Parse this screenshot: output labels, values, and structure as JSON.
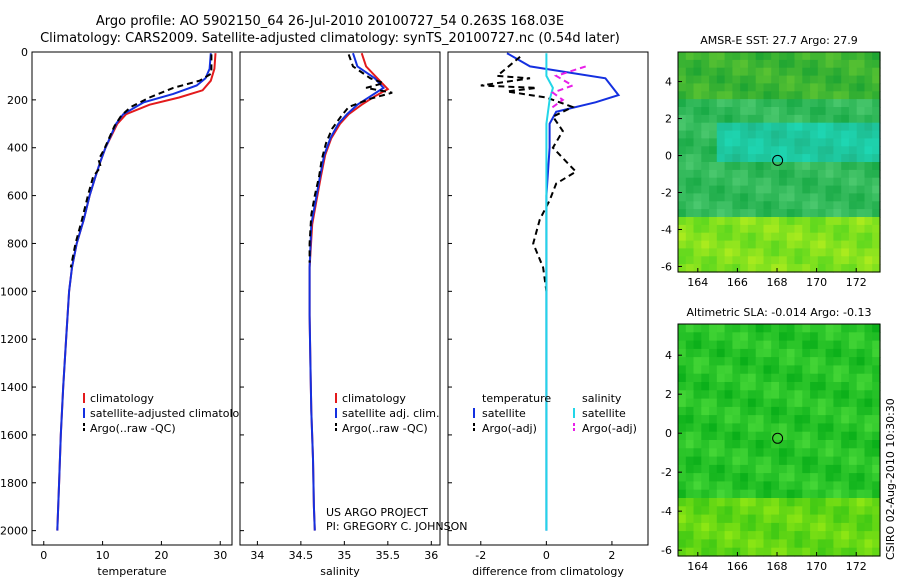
{
  "header": {
    "line1": "Argo profile: AO 5902150_64 26-Jul-2010 20100727_54 0.263S 168.03E",
    "line2": "Climatology: CARS2009. Satellite-adjusted climatology: synTS_20100727.nc (0.54d later)"
  },
  "credit": {
    "line1": "US ARGO PROJECT",
    "line2": "PI: GREGORY C. JOHNSON"
  },
  "stamp": "CSIRO 02-Aug-2010 10:30:30",
  "colors": {
    "clim": "#e31a1c",
    "sat": "#1430e0",
    "argo": "#000000",
    "sat_cyan": "#22d6e8",
    "argo_mag": "#e820e8"
  },
  "chart_data": [
    {
      "type": "line",
      "id": "temperature",
      "xlabel": "temperature",
      "xlim": [
        -2,
        32
      ],
      "ylim": [
        2060,
        0
      ],
      "xticks": [
        0,
        10,
        20,
        30
      ],
      "yticks": [
        0,
        200,
        400,
        600,
        800,
        1000,
        1200,
        1400,
        1600,
        1800,
        2000
      ],
      "legend": [
        "climatology",
        "satellite-adjusted climatology",
        "Argo(..raw -QC)"
      ],
      "series": [
        {
          "name": "climatology",
          "color": "clim",
          "dash": "solid",
          "points": [
            [
              29.2,
              5
            ],
            [
              29.0,
              70
            ],
            [
              28.4,
              120
            ],
            [
              27.0,
              160
            ],
            [
              23.0,
              190
            ],
            [
              18.0,
              220
            ],
            [
              14.0,
              260
            ],
            [
              12.5,
              300
            ],
            [
              11.5,
              350
            ],
            [
              10.5,
              400
            ],
            [
              9.6,
              460
            ],
            [
              8.8,
              520
            ],
            [
              7.8,
              600
            ],
            [
              6.8,
              700
            ],
            [
              5.6,
              800
            ],
            [
              4.8,
              900
            ],
            [
              4.3,
              1000
            ],
            [
              3.8,
              1200
            ],
            [
              3.3,
              1400
            ],
            [
              2.9,
              1600
            ],
            [
              2.6,
              1800
            ],
            [
              2.3,
              2000
            ]
          ]
        },
        {
          "name": "satellite-adjusted climatology",
          "color": "sat",
          "dash": "solid",
          "points": [
            [
              28.4,
              5
            ],
            [
              28.2,
              70
            ],
            [
              27.5,
              110
            ],
            [
              26.0,
              140
            ],
            [
              22.0,
              175
            ],
            [
              17.0,
              210
            ],
            [
              13.5,
              260
            ],
            [
              12.3,
              300
            ],
            [
              11.4,
              350
            ],
            [
              10.5,
              400
            ],
            [
              9.6,
              460
            ],
            [
              8.8,
              520
            ],
            [
              7.8,
              600
            ],
            [
              6.8,
              700
            ],
            [
              5.6,
              800
            ],
            [
              4.8,
              900
            ],
            [
              4.3,
              1000
            ],
            [
              3.8,
              1200
            ],
            [
              3.3,
              1400
            ],
            [
              2.9,
              1600
            ],
            [
              2.6,
              1800
            ],
            [
              2.3,
              2000
            ]
          ]
        },
        {
          "name": "Argo(..raw -QC)",
          "color": "argo",
          "dash": "dashed",
          "points": [
            [
              28.5,
              10
            ],
            [
              28.5,
              90
            ],
            [
              26.5,
              120
            ],
            [
              22.0,
              150
            ],
            [
              18.0,
              190
            ],
            [
              14.8,
              230
            ],
            [
              13.2,
              265
            ],
            [
              12.0,
              310
            ],
            [
              11.1,
              360
            ],
            [
              10.2,
              410
            ],
            [
              9.3,
              450
            ],
            [
              9.7,
              480
            ],
            [
              8.4,
              520
            ],
            [
              7.5,
              600
            ],
            [
              6.5,
              700
            ],
            [
              5.4,
              800
            ],
            [
              4.6,
              900
            ]
          ]
        }
      ]
    },
    {
      "type": "line",
      "id": "salinity",
      "xlabel": "salinity",
      "xlim": [
        33.8,
        36.1
      ],
      "ylim": [
        2060,
        0
      ],
      "xticks": [
        34,
        34.5,
        35,
        35.5,
        36
      ],
      "yticks": [
        0,
        200,
        400,
        600,
        800,
        1000,
        1200,
        1400,
        1600,
        1800,
        2000
      ],
      "legend": [
        "climatology",
        "satellite adj. clim.",
        "Argo(..raw -QC)"
      ],
      "series": [
        {
          "name": "climatology",
          "color": "clim",
          "dash": "solid",
          "points": [
            [
              35.2,
              5
            ],
            [
              35.25,
              60
            ],
            [
              35.38,
              110
            ],
            [
              35.5,
              155
            ],
            [
              35.35,
              185
            ],
            [
              35.2,
              220
            ],
            [
              35.05,
              260
            ],
            [
              34.95,
              300
            ],
            [
              34.85,
              360
            ],
            [
              34.78,
              430
            ],
            [
              34.73,
              520
            ],
            [
              34.68,
              620
            ],
            [
              34.63,
              720
            ],
            [
              34.6,
              900
            ],
            [
              34.6,
              1100
            ],
            [
              34.61,
              1300
            ],
            [
              34.62,
              1500
            ],
            [
              34.64,
              1700
            ],
            [
              34.65,
              1900
            ],
            [
              34.66,
              2000
            ]
          ]
        },
        {
          "name": "satellite adj. clim.",
          "color": "sat",
          "dash": "solid",
          "points": [
            [
              35.1,
              5
            ],
            [
              35.15,
              60
            ],
            [
              35.35,
              110
            ],
            [
              35.45,
              150
            ],
            [
              35.3,
              185
            ],
            [
              35.15,
              220
            ],
            [
              35.03,
              260
            ],
            [
              34.93,
              300
            ],
            [
              34.84,
              360
            ],
            [
              34.77,
              430
            ],
            [
              34.72,
              520
            ],
            [
              34.67,
              620
            ],
            [
              34.62,
              720
            ],
            [
              34.6,
              900
            ],
            [
              34.6,
              1100
            ],
            [
              34.61,
              1300
            ],
            [
              34.62,
              1500
            ],
            [
              34.64,
              1700
            ],
            [
              34.65,
              1900
            ],
            [
              34.66,
              2000
            ]
          ]
        },
        {
          "name": "Argo(..raw -QC)",
          "color": "argo",
          "dash": "dashed",
          "points": [
            [
              35.05,
              10
            ],
            [
              35.1,
              60
            ],
            [
              35.3,
              110
            ],
            [
              35.45,
              130
            ],
            [
              35.25,
              150
            ],
            [
              35.55,
              170
            ],
            [
              35.3,
              195
            ],
            [
              35.05,
              230
            ],
            [
              34.96,
              270
            ],
            [
              34.86,
              320
            ],
            [
              34.79,
              380
            ],
            [
              34.74,
              450
            ],
            [
              34.71,
              520
            ],
            [
              34.66,
              600
            ],
            [
              34.62,
              680
            ],
            [
              34.6,
              800
            ],
            [
              34.6,
              880
            ]
          ]
        }
      ]
    },
    {
      "type": "line",
      "id": "difference",
      "xlabel": "difference from climatology",
      "xlim": [
        -3,
        3.1
      ],
      "ylim": [
        2060,
        0
      ],
      "xticks": [
        -2,
        0,
        2
      ],
      "yticks": [
        0,
        200,
        400,
        600,
        800,
        1000,
        1200,
        1400,
        1600,
        1800,
        2000
      ],
      "legend": [
        "temperature",
        "satellite",
        "Argo(-adj)",
        "salinity",
        "satellite",
        "Argo(-adj)"
      ],
      "series": [
        {
          "name": "temperature satellite",
          "color": "sat",
          "dash": "solid",
          "points": [
            [
              -1.2,
              5
            ],
            [
              -0.5,
              60
            ],
            [
              1.8,
              110
            ],
            [
              2.2,
              180
            ],
            [
              1.5,
              210
            ],
            [
              0.3,
              250
            ],
            [
              0.1,
              300
            ],
            [
              0.1,
              400
            ],
            [
              0.05,
              500
            ],
            [
              0.0,
              600
            ],
            [
              0.0,
              800
            ],
            [
              0.0,
              1000
            ],
            [
              0.0,
              1500
            ],
            [
              0.0,
              2000
            ]
          ]
        },
        {
          "name": "temperature Argo(-adj)",
          "color": "argo",
          "dash": "dashed",
          "points": [
            [
              -0.8,
              20
            ],
            [
              -1.5,
              100
            ],
            [
              -0.5,
              110
            ],
            [
              -2.0,
              140
            ],
            [
              -0.3,
              150
            ],
            [
              -1.2,
              165
            ],
            [
              0.0,
              190
            ],
            [
              0.8,
              230
            ],
            [
              0.2,
              270
            ],
            [
              0.5,
              330
            ],
            [
              0.2,
              400
            ],
            [
              0.9,
              500
            ],
            [
              0.3,
              550
            ],
            [
              0.1,
              620
            ],
            [
              -0.2,
              700
            ],
            [
              -0.4,
              800
            ],
            [
              -0.1,
              900
            ],
            [
              0.0,
              1000
            ]
          ]
        },
        {
          "name": "salinity satellite",
          "color": "sat_cyan",
          "dash": "solid",
          "points": [
            [
              0.0,
              5
            ],
            [
              0.0,
              100
            ],
            [
              0.2,
              150
            ],
            [
              0.1,
              200
            ],
            [
              0.0,
              300
            ],
            [
              0.0,
              500
            ],
            [
              0.0,
              800
            ],
            [
              0.0,
              1200
            ],
            [
              0.0,
              1600
            ],
            [
              0.0,
              2000
            ]
          ]
        },
        {
          "name": "salinity Argo(-adj)",
          "color": "argo_mag",
          "dash": "dashed",
          "points": [
            [
              1.2,
              60
            ],
            [
              0.3,
              100
            ],
            [
              0.8,
              140
            ],
            [
              0.2,
              170
            ],
            [
              0.5,
              200
            ],
            [
              0.1,
              240
            ]
          ]
        }
      ]
    },
    {
      "type": "heatmap",
      "id": "sst",
      "title": "AMSR-E SST: 27.7 Argo: 27.9",
      "xlim": [
        163,
        173.2
      ],
      "ylim": [
        -6.3,
        5.6
      ],
      "xticks": [
        164,
        166,
        168,
        170,
        172
      ],
      "yticks": [
        -6,
        -4,
        -2,
        0,
        2,
        4
      ],
      "marker": [
        168.03,
        -0.263
      ]
    },
    {
      "type": "heatmap",
      "id": "sla",
      "title": "Altimetric SLA: -0.014 Argo: -0.13",
      "xlim": [
        163,
        173.2
      ],
      "ylim": [
        -6.3,
        5.6
      ],
      "xticks": [
        164,
        166,
        168,
        170,
        172
      ],
      "yticks": [
        -6,
        -4,
        -2,
        0,
        2,
        4
      ],
      "marker": [
        168.03,
        -0.263
      ]
    }
  ]
}
